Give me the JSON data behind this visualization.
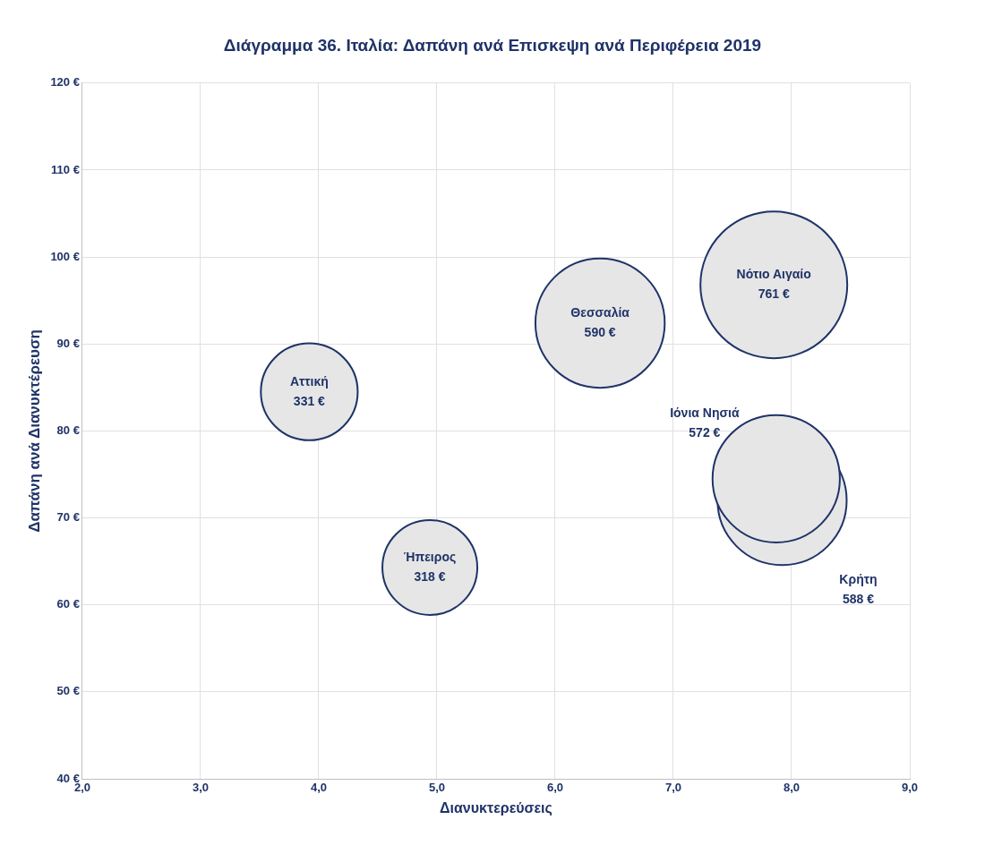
{
  "chart_data": {
    "type": "bubble",
    "title": "Διάγραμμα 36. Ιταλία: Δαπάνη ανά Επισκεψη ανά Περιφέρεια 2019",
    "xlabel": "Διανυκτερεύσεις",
    "ylabel": "Δαπάνη ανά Διανυκτέρευση",
    "xlim": [
      2,
      9
    ],
    "xticks": [
      {
        "value": 2,
        "label": "2,0"
      },
      {
        "value": 3,
        "label": "3,0"
      },
      {
        "value": 4,
        "label": "4,0"
      },
      {
        "value": 5,
        "label": "5,0"
      },
      {
        "value": 6,
        "label": "6,0"
      },
      {
        "value": 7,
        "label": "7,0"
      },
      {
        "value": 8,
        "label": "8,0"
      },
      {
        "value": 9,
        "label": "9,0"
      }
    ],
    "ylim": [
      40,
      120
    ],
    "yticks": [
      {
        "value": 40,
        "label": "40 €"
      },
      {
        "value": 50,
        "label": "50 €"
      },
      {
        "value": 60,
        "label": "60 €"
      },
      {
        "value": 70,
        "label": "70 €"
      },
      {
        "value": 80,
        "label": "80 €"
      },
      {
        "value": 90,
        "label": "90 €"
      },
      {
        "value": 100,
        "label": "100 €"
      },
      {
        "value": 110,
        "label": "110 €"
      },
      {
        "value": 120,
        "label": "120 €"
      }
    ],
    "grid": true,
    "legend": false,
    "series": [
      {
        "name": "Αττική",
        "color": "#e6e6e6",
        "x": [
          3.92
        ],
        "values": [
          84.5
        ],
        "sizes": [
          331
        ],
        "value_labels": [
          "331 €"
        ]
      },
      {
        "name": "Ήπειρος",
        "color": "#e6e6e6",
        "x": [
          4.94
        ],
        "values": [
          64.3
        ],
        "sizes": [
          318
        ],
        "value_labels": [
          "318 €"
        ]
      },
      {
        "name": "Θεσσαλία",
        "color": "#e6e6e6",
        "x": [
          6.38
        ],
        "values": [
          92.4
        ],
        "sizes": [
          590
        ],
        "value_labels": [
          "590 €"
        ]
      },
      {
        "name": "Νότιο Αιγαίο",
        "color": "#e6e6e6",
        "x": [
          7.85
        ],
        "values": [
          96.8
        ],
        "sizes": [
          761
        ],
        "value_labels": [
          "761 €"
        ]
      },
      {
        "name": "Ιόνια Νησιά",
        "color": "#e6e6e6",
        "x": [
          7.87
        ],
        "values": [
          74.5
        ],
        "sizes": [
          572
        ],
        "value_labels": [
          "572 €"
        ]
      },
      {
        "name": "Κρήτη",
        "color": "#e6e6e6",
        "x": [
          7.92
        ],
        "values": [
          72
        ],
        "sizes": [
          588
        ],
        "value_labels": [
          "588 €"
        ]
      }
    ]
  }
}
